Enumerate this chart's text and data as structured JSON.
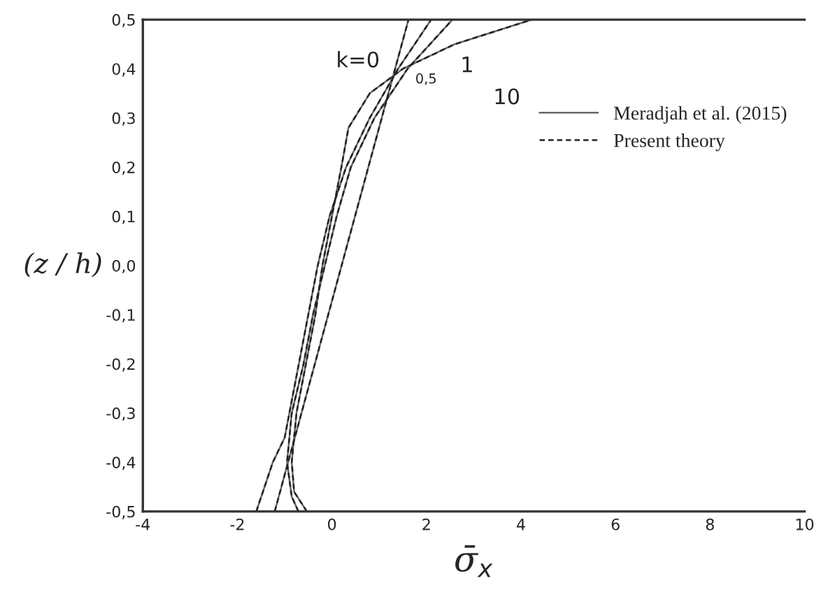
{
  "chart_data": {
    "type": "line",
    "xlabel": "σ̄$_{x}$",
    "ylabel": "(z / h)",
    "series": [
      {
        "name": "Meradjah et al. (2015)",
        "color": "#666666",
        "line_style": "solid",
        "x": [
          -1.21,
          1.62
        ],
        "values": [
          -0.5,
          0.5
        ]
      },
      {
        "color": "#666666",
        "line_style": "solid",
        "x": [
          -1.6,
          -1.25,
          -1.0,
          -0.9,
          -0.7,
          -0.5,
          -0.3,
          -0.05,
          0.3,
          0.8,
          1.4,
          2.1
        ],
        "values": [
          -0.5,
          -0.4,
          -0.35,
          -0.3,
          -0.2,
          -0.1,
          0.0,
          0.1,
          0.2,
          0.3,
          0.4,
          0.5
        ]
      },
      {
        "color": "#666666",
        "line_style": "solid",
        "x": [
          -0.71,
          -0.85,
          -0.95,
          -0.85,
          -0.6,
          -0.4,
          -0.15,
          0.1,
          0.4,
          0.9,
          1.6,
          2.55
        ],
        "values": [
          -0.5,
          -0.47,
          -0.4,
          -0.3,
          -0.2,
          -0.1,
          0.0,
          0.1,
          0.2,
          0.3,
          0.4,
          0.5
        ]
      },
      {
        "color": "#666666",
        "line_style": "solid",
        "x": [
          -0.53,
          -0.8,
          -0.85,
          -0.75,
          -0.55,
          -0.35,
          -0.2,
          0.0,
          0.2,
          0.35,
          0.8,
          1.5,
          2.6,
          4.23
        ],
        "values": [
          -0.5,
          -0.46,
          -0.4,
          -0.3,
          -0.2,
          -0.1,
          0.0,
          0.1,
          0.2,
          0.28,
          0.35,
          0.4,
          0.45,
          0.5
        ]
      },
      {
        "name": "Present theory",
        "color": "#222222",
        "line_style": "dashed",
        "x": [
          -1.21,
          1.62
        ],
        "values": [
          -0.5,
          0.5
        ]
      },
      {
        "color": "#222222",
        "line_style": "dashed",
        "x": [
          -1.6,
          -1.25,
          -1.0,
          -0.9,
          -0.7,
          -0.5,
          -0.3,
          -0.05,
          0.3,
          0.8,
          1.4,
          2.1
        ],
        "values": [
          -0.5,
          -0.4,
          -0.35,
          -0.3,
          -0.2,
          -0.1,
          0.0,
          0.1,
          0.2,
          0.3,
          0.4,
          0.5
        ]
      },
      {
        "color": "#222222",
        "line_style": "dashed",
        "x": [
          -0.71,
          -0.85,
          -0.95,
          -0.85,
          -0.6,
          -0.4,
          -0.15,
          0.1,
          0.4,
          0.9,
          1.6,
          2.55
        ],
        "values": [
          -0.5,
          -0.47,
          -0.4,
          -0.3,
          -0.2,
          -0.1,
          0.0,
          0.1,
          0.2,
          0.3,
          0.4,
          0.5
        ]
      },
      {
        "color": "#222222",
        "line_style": "dashed",
        "x": [
          -0.53,
          -0.8,
          -0.85,
          -0.75,
          -0.55,
          -0.35,
          -0.2,
          0.0,
          0.2,
          0.35,
          0.8,
          1.5,
          2.6,
          4.23
        ],
        "values": [
          -0.5,
          -0.46,
          -0.4,
          -0.3,
          -0.2,
          -0.1,
          0.0,
          0.1,
          0.2,
          0.28,
          0.35,
          0.4,
          0.45,
          0.5
        ]
      }
    ],
    "annotations": [
      "k=0",
      "0,5",
      "1",
      "10"
    ],
    "xlim": [
      -4,
      10
    ],
    "xticks": [
      -4,
      -2,
      0,
      2,
      4,
      6,
      8,
      10
    ],
    "ylim": [
      -0.5,
      0.5
    ],
    "yticks": [
      {
        "value": -0.5,
        "label": "-0,5"
      },
      {
        "value": -0.4,
        "label": "-0,4"
      },
      {
        "value": -0.3,
        "label": "-0,3"
      },
      {
        "value": -0.2,
        "label": "-0,2"
      },
      {
        "value": -0.1,
        "label": "-0,1"
      },
      {
        "value": 0.0,
        "label": "0,0"
      },
      {
        "value": 0.1,
        "label": "0,1"
      },
      {
        "value": 0.2,
        "label": "0,2"
      },
      {
        "value": 0.3,
        "label": "0,3"
      },
      {
        "value": 0.4,
        "label": "0,4"
      },
      {
        "value": 0.5,
        "label": "0,5"
      }
    ],
    "legend": "top right",
    "grid": false,
    "marker": "none"
  }
}
